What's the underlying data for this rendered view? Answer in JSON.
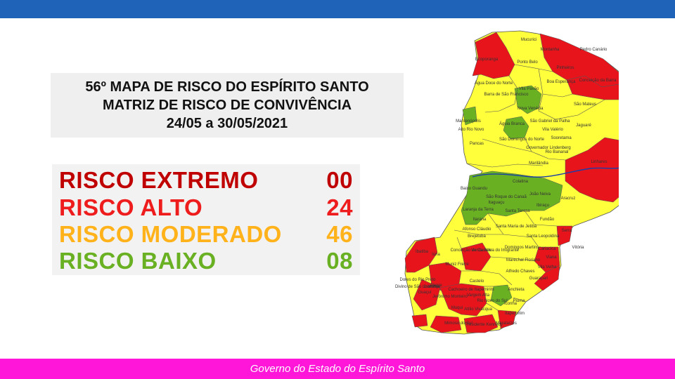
{
  "header": {
    "color": "#1f63b8"
  },
  "title": {
    "line1": "56º MAPA DE RISCO DO ESPÍRITO SANTO",
    "line2": "MATRIZ DE RISCO DE CONVIVÊNCIA",
    "line3": "24/05 a 30/05/2021"
  },
  "legend": [
    {
      "label": "RISCO EXTREMO",
      "count": "00",
      "color": "#c00000"
    },
    {
      "label": "RISCO ALTO",
      "count": "24",
      "color": "#ee1c1c"
    },
    {
      "label": "RISCO MODERADO",
      "count": "46",
      "color": "#ffb21a"
    },
    {
      "label": "RISCO BAIXO",
      "count": "08",
      "color": "#6ab023"
    }
  ],
  "map": {
    "colors": {
      "alto": "#e8141c",
      "moderado": "#ffff3b",
      "baixo": "#6ab023",
      "border": "#555555",
      "river": "#1b3ea8"
    },
    "municipalities": [
      "Mucurici",
      "Montanha",
      "Ponto Belo",
      "Pedro Canário",
      "Ecoporanga",
      "Pinheiros",
      "Conceição da Barra",
      "Água Doce do Norte",
      "Vila Pavão",
      "Boa Esperança",
      "Barra de São Francisco",
      "Nova Venécia",
      "São Mateus",
      "Mantenópolis",
      "Águia Branca",
      "São Gabriel da Palha",
      "Vila Valério",
      "Jaguaré",
      "Alto Rio Novo",
      "Sooretama",
      "Pancas",
      "São Domingos do Norte",
      "Governador Lindenberg",
      "Rio Bananal",
      "Linhares",
      "Marilândia",
      "Colatina",
      "Baixo Guandu",
      "São Roque do Canaã",
      "João Neiva",
      "Itaguaçu",
      "Ibiraçu",
      "Aracruz",
      "Laranja da Terra",
      "Santa Teresa",
      "Itarana",
      "Fundão",
      "Afonso Cláudio",
      "Santa Maria de Jetibá",
      "Santa Leopoldina",
      "Serra",
      "Brejetuba",
      "Domingos Martins",
      "Cariacica",
      "Vitória",
      "Conceição do Castelo",
      "Venda Nova do Imigrante",
      "Viana",
      "Ibatiba",
      "Iúna",
      "Muniz Freire",
      "Marechal Floriano",
      "Vila Velha",
      "Castelo",
      "Alfredo Chaves",
      "Guarapari",
      "Dores do Rio Preto",
      "Divino de São Lourenço",
      "Ibitirama",
      "Alegre",
      "Cachoeiro de Itapemirim",
      "Vargem Alta",
      "Anchieta",
      "Guaçuí",
      "Jerônimo Monteiro",
      "Rio Novo do Sul",
      "Iconha",
      "Piúma",
      "Muqui",
      "Atílio Vivácqua",
      "Itapemirim",
      "Mimoso do Sul",
      "Presidente Kennedy",
      "Marataízes"
    ]
  }
}
